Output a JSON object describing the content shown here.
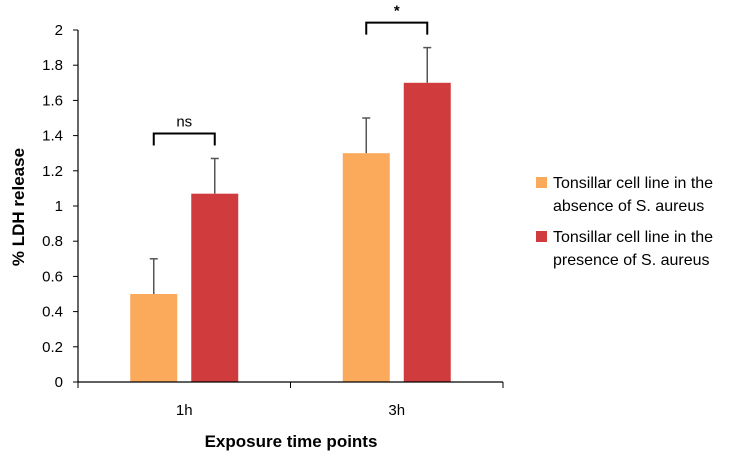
{
  "chart_data": {
    "type": "bar",
    "title": "",
    "xlabel": "Exposure time points",
    "ylabel": "% LDH release",
    "categories": [
      "1h",
      "3h"
    ],
    "ylim": [
      0,
      2
    ],
    "yticks": [
      "0",
      "0.2",
      "0.4",
      "0.6",
      "0.8",
      "1",
      "1.2",
      "1.4",
      "1.6",
      "1.8",
      "2"
    ],
    "grid": false,
    "legend_position": "right",
    "series": [
      {
        "name": "Tonsillar cell line in the absence of S. aureus",
        "color": "#FBA95A",
        "values": [
          0.5,
          1.3
        ],
        "error": [
          0.2,
          0.2
        ]
      },
      {
        "name": "Tonsillar cell line in the presence of S. aureus",
        "color": "#D03C3E",
        "values": [
          1.07,
          1.7
        ],
        "error": [
          0.2,
          0.2
        ]
      }
    ],
    "annotations": [
      {
        "category": "1h",
        "text": "ns"
      },
      {
        "category": "3h",
        "text": "*"
      }
    ]
  }
}
